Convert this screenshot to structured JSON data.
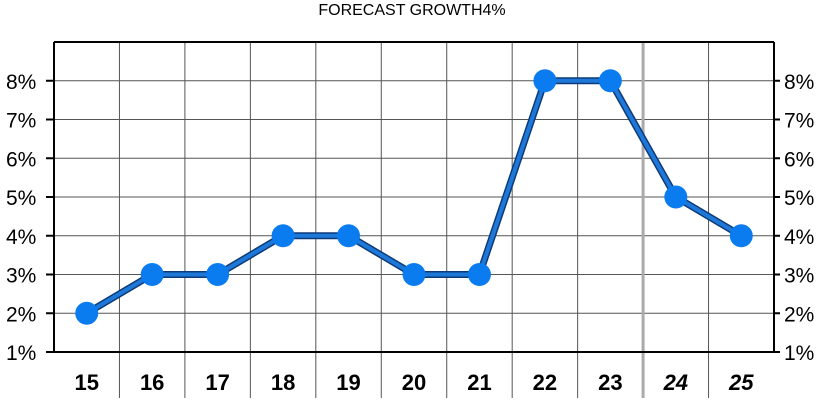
{
  "header": {
    "title": "FORECAST GROWTH",
    "highlight_value": "4%",
    "highlight_color": "#e8201a"
  },
  "chart_data": {
    "type": "line",
    "title": "FORECAST GROWTH",
    "categories": [
      "15",
      "16",
      "17",
      "18",
      "19",
      "20",
      "21",
      "22",
      "23",
      "24",
      "25"
    ],
    "forecast_categories": [
      "24",
      "25"
    ],
    "values": [
      2,
      3,
      3,
      4,
      4,
      3,
      3,
      8,
      8,
      5,
      4
    ],
    "y_ticks": [
      "1%",
      "2%",
      "3%",
      "4%",
      "5%",
      "6%",
      "7%",
      "8%"
    ],
    "ylim": [
      1,
      9
    ],
    "y_axis_both_sides": true,
    "grid": true,
    "line_color": "#1e78d8",
    "marker_color": "#0a7cf0",
    "xlabel": "",
    "ylabel": ""
  }
}
